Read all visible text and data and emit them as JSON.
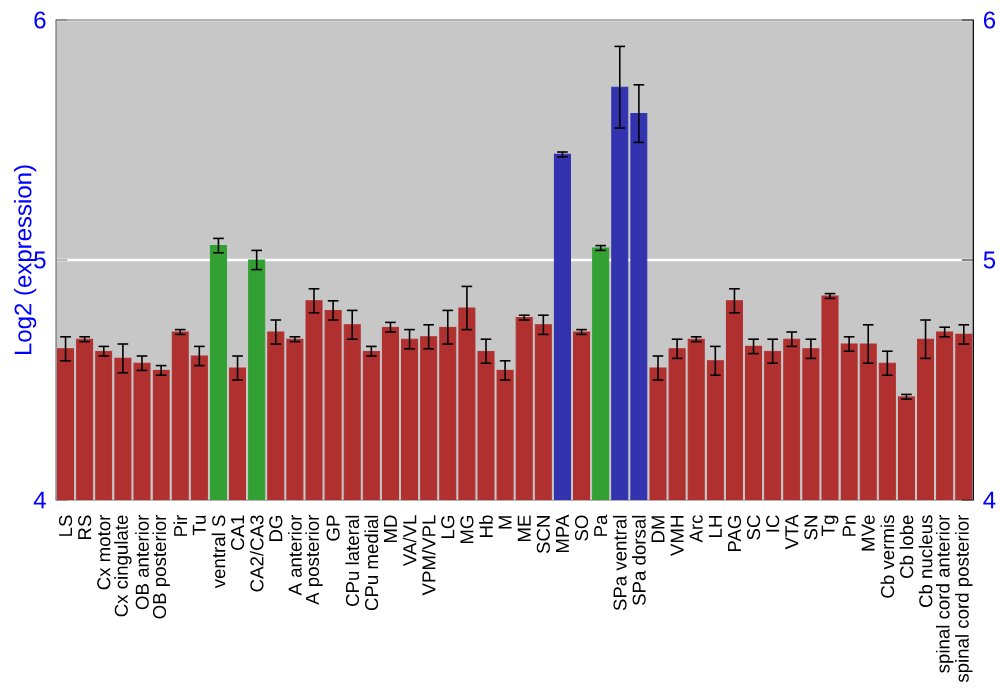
{
  "chart_data": {
    "type": "bar",
    "ylabel": "Log2 (expression)",
    "categories": [
      "LS",
      "RS",
      "Cx motor",
      "Cx cingulate",
      "OB anterior",
      "OB posterior",
      "Pir",
      "Tu",
      "ventral S",
      "CA1",
      "CA2/CA3",
      "DG",
      "A anterior",
      "A posterior",
      "GP",
      "CPu lateral",
      "CPu medial",
      "MD",
      "VA/VL",
      "VPM/VPL",
      "LG",
      "MG",
      "Hb",
      "M",
      "ME",
      "SCN",
      "MPA",
      "SO",
      "Pa",
      "SPa ventral",
      "SPa dorsal",
      "DM",
      "VMH",
      "Arc",
      "LH",
      "PAG",
      "SC",
      "IC",
      "VTA",
      "SN",
      "Tg",
      "Pn",
      "MVe",
      "Cb vermis",
      "Cb lobe",
      "Cb nucleus",
      "spinal cord anterior",
      "spinal cord posterior"
    ],
    "values": [
      4.63,
      4.67,
      4.62,
      4.59,
      4.57,
      4.54,
      4.7,
      4.6,
      5.06,
      4.55,
      5.0,
      4.7,
      4.67,
      4.83,
      4.79,
      4.73,
      4.62,
      4.72,
      4.67,
      4.68,
      4.72,
      4.8,
      4.62,
      4.54,
      4.76,
      4.73,
      5.44,
      4.7,
      5.05,
      5.72,
      5.61,
      4.55,
      4.63,
      4.67,
      4.58,
      4.83,
      4.64,
      4.62,
      4.67,
      4.63,
      4.85,
      4.65,
      4.65,
      4.57,
      4.43,
      4.67,
      4.7,
      4.69
    ],
    "errors": [
      0.05,
      0.01,
      0.02,
      0.06,
      0.03,
      0.02,
      0.01,
      0.04,
      0.03,
      0.05,
      0.04,
      0.05,
      0.01,
      0.05,
      0.04,
      0.06,
      0.02,
      0.02,
      0.04,
      0.05,
      0.07,
      0.09,
      0.05,
      0.04,
      0.01,
      0.04,
      0.01,
      0.01,
      0.01,
      0.17,
      0.12,
      0.05,
      0.04,
      0.01,
      0.06,
      0.05,
      0.03,
      0.05,
      0.03,
      0.04,
      0.01,
      0.03,
      0.08,
      0.05,
      0.01,
      0.08,
      0.02,
      0.04
    ],
    "colors": [
      "#b03030",
      "#b03030",
      "#b03030",
      "#b03030",
      "#b03030",
      "#b03030",
      "#b03030",
      "#b03030",
      "#33a033",
      "#b03030",
      "#33a033",
      "#b03030",
      "#b03030",
      "#b03030",
      "#b03030",
      "#b03030",
      "#b03030",
      "#b03030",
      "#b03030",
      "#b03030",
      "#b03030",
      "#b03030",
      "#b03030",
      "#b03030",
      "#b03030",
      "#b03030",
      "#3333b0",
      "#b03030",
      "#33a033",
      "#3333b0",
      "#3333b0",
      "#b03030",
      "#b03030",
      "#b03030",
      "#b03030",
      "#b03030",
      "#b03030",
      "#b03030",
      "#b03030",
      "#b03030",
      "#b03030",
      "#b03030",
      "#b03030",
      "#b03030",
      "#b03030",
      "#b03030",
      "#b03030",
      "#b03030"
    ],
    "ylim": [
      4,
      6
    ],
    "yticks": [
      4,
      5,
      6
    ],
    "y2lim": [
      4,
      6
    ],
    "y2ticks": [
      4,
      5,
      6
    ],
    "grid": "y"
  }
}
